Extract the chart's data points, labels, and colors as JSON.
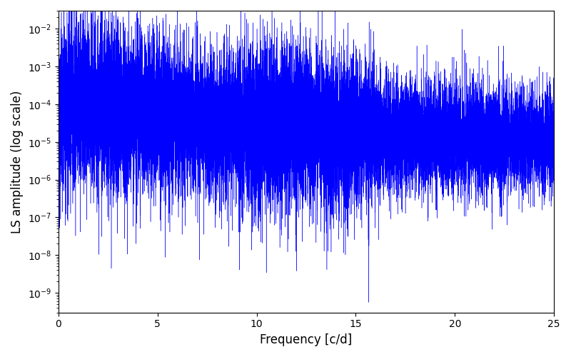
{
  "title": "",
  "xlabel": "Frequency [c/d]",
  "ylabel": "LS amplitude (log scale)",
  "xlim": [
    0,
    25
  ],
  "ylim": [
    3e-10,
    0.03
  ],
  "line_color": "#0000ff",
  "background_color": "#ffffff",
  "figsize": [
    8.0,
    5.0
  ],
  "dpi": 100,
  "seed": 12345,
  "n_points": 15000,
  "freq_max": 25.0
}
